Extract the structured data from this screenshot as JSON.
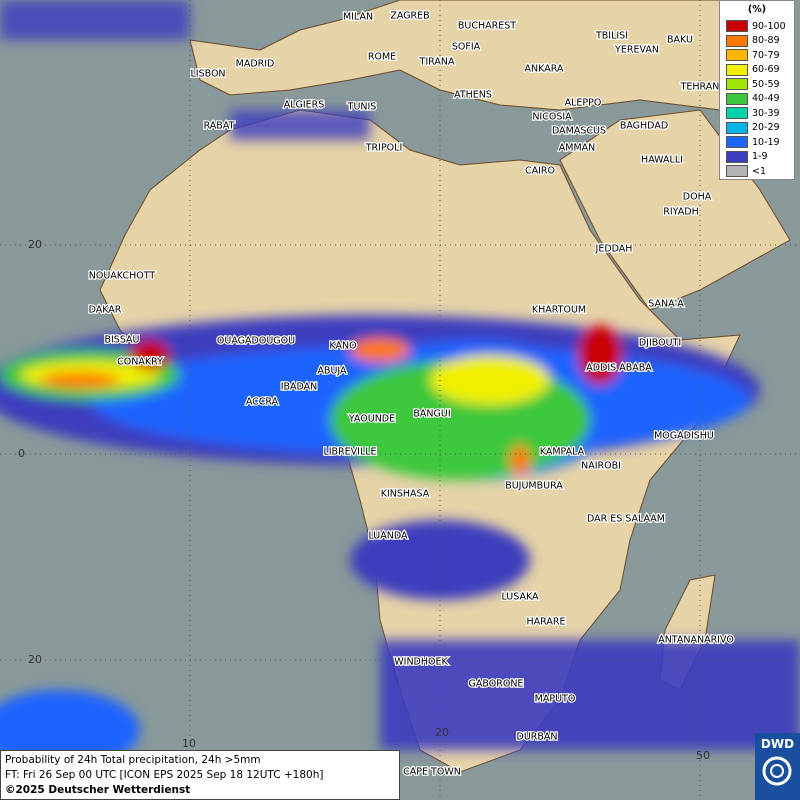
{
  "map": {
    "cities": [
      "MILAN",
      "ZAGREB",
      "BUCHAREST",
      "TBILISI",
      "BAKU",
      "ROME",
      "SOFIA",
      "YEREVAN",
      "LISBON",
      "MADRID",
      "TIRANA",
      "ANKARA",
      "TEHRAN",
      "ALGIERS",
      "TUNIS",
      "ATHENS",
      "ALEPPO",
      "NICOSIA",
      "RABAT",
      "BAGHDAD",
      "DAMASCUS",
      "TRIPOLI",
      "AMMAN",
      "HAWALLI",
      "CAIRO",
      "DOHA",
      "RIYADH",
      "JEDDAH",
      "NOUAKCHOTT",
      "DAKAR",
      "KHARTOUM",
      "SANA'A",
      "BISSAU",
      "OUAGADOUGOU",
      "KANO",
      "DJIBOUTI",
      "CONAKRY",
      "ABUJA",
      "ADDIS ABABA",
      "IBADAN",
      "ACCRA",
      "BANGUI",
      "YAOUNDE",
      "MOGADISHU",
      "LIBREVILLE",
      "KAMPALA",
      "NAIROBI",
      "BUJUMBURA",
      "KINSHASA",
      "DAR ES SALAAM",
      "LUANDA",
      "LUSAKA",
      "HARARE",
      "ANTANANARIVO",
      "WINDHOEK",
      "GABORONE",
      "MAPUTO",
      "DURBAN",
      "CAPE TOWN"
    ],
    "graticule_labels": [
      "20",
      "0",
      "20",
      "10",
      "20",
      "50"
    ]
  },
  "legend": {
    "unit": "(%)",
    "items": [
      {
        "label": "90-100",
        "color": "#c80000"
      },
      {
        "label": "80-89",
        "color": "#ff7800"
      },
      {
        "label": "70-79",
        "color": "#ffb400"
      },
      {
        "label": "60-69",
        "color": "#f0f000"
      },
      {
        "label": "50-59",
        "color": "#a0e600"
      },
      {
        "label": "40-49",
        "color": "#3cc83c"
      },
      {
        "label": "30-39",
        "color": "#00d2aa"
      },
      {
        "label": "20-29",
        "color": "#00b4e6"
      },
      {
        "label": "10-19",
        "color": "#1e64ff"
      },
      {
        "label": "1-9",
        "color": "#3c3cbe"
      },
      {
        "label": "<1",
        "color": "#b4b4b4"
      }
    ]
  },
  "caption": {
    "line1": "Probability of 24h Total precipitation, 24h >5mm",
    "line2": "FT: Fri 26 Sep 00 UTC [ICON EPS 2025 Sep 18 12UTC +180h]",
    "line3": "©2025 Deutscher Wetterdienst"
  },
  "logo": "DWD"
}
